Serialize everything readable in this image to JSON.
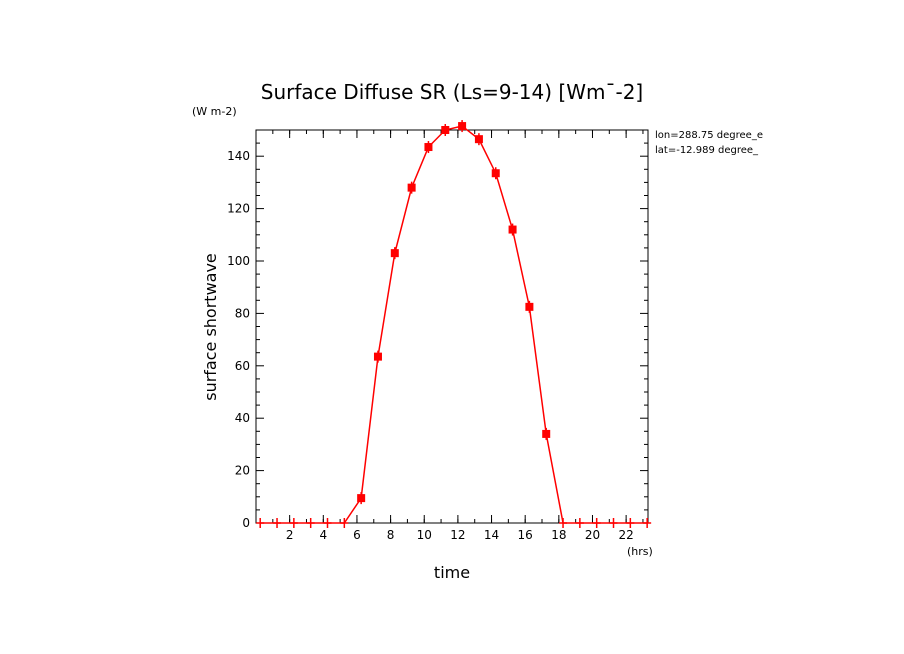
{
  "chart_data": {
    "type": "line",
    "title": "Surface Diffuse SR (Ls=9-14) [Wm¯-2]",
    "ylabel": "surface shortwave",
    "yunits": "(W m-2)",
    "xlabel": "time",
    "xunits": "(hrs)",
    "annotations": [
      "lon=288.75 degree_e",
      "lat=-12.989 degree_"
    ],
    "xlim": [
      0,
      23.3
    ],
    "ylim": [
      0,
      150
    ],
    "xticks": [
      2,
      4,
      6,
      8,
      10,
      12,
      14,
      16,
      18,
      20,
      22
    ],
    "yticks": [
      0,
      20,
      40,
      60,
      80,
      100,
      120,
      140
    ],
    "grid": false,
    "series": [
      {
        "color": "#ff0000",
        "x": [
          0.25,
          1.25,
          2.25,
          3.25,
          4.25,
          5.25,
          6.25,
          7.25,
          8.25,
          9.25,
          10.25,
          11.25,
          12.25,
          13.25,
          14.25,
          15.25,
          16.25,
          17.25,
          18.25,
          19.25,
          20.25,
          21.25,
          22.25,
          23.25
        ],
        "y": [
          0,
          0,
          0,
          0,
          0,
          0,
          9.5,
          63.5,
          103,
          128,
          143.5,
          150,
          151.5,
          146.5,
          133.5,
          112,
          82.5,
          34,
          0,
          0,
          0,
          0,
          0,
          0
        ]
      }
    ]
  }
}
